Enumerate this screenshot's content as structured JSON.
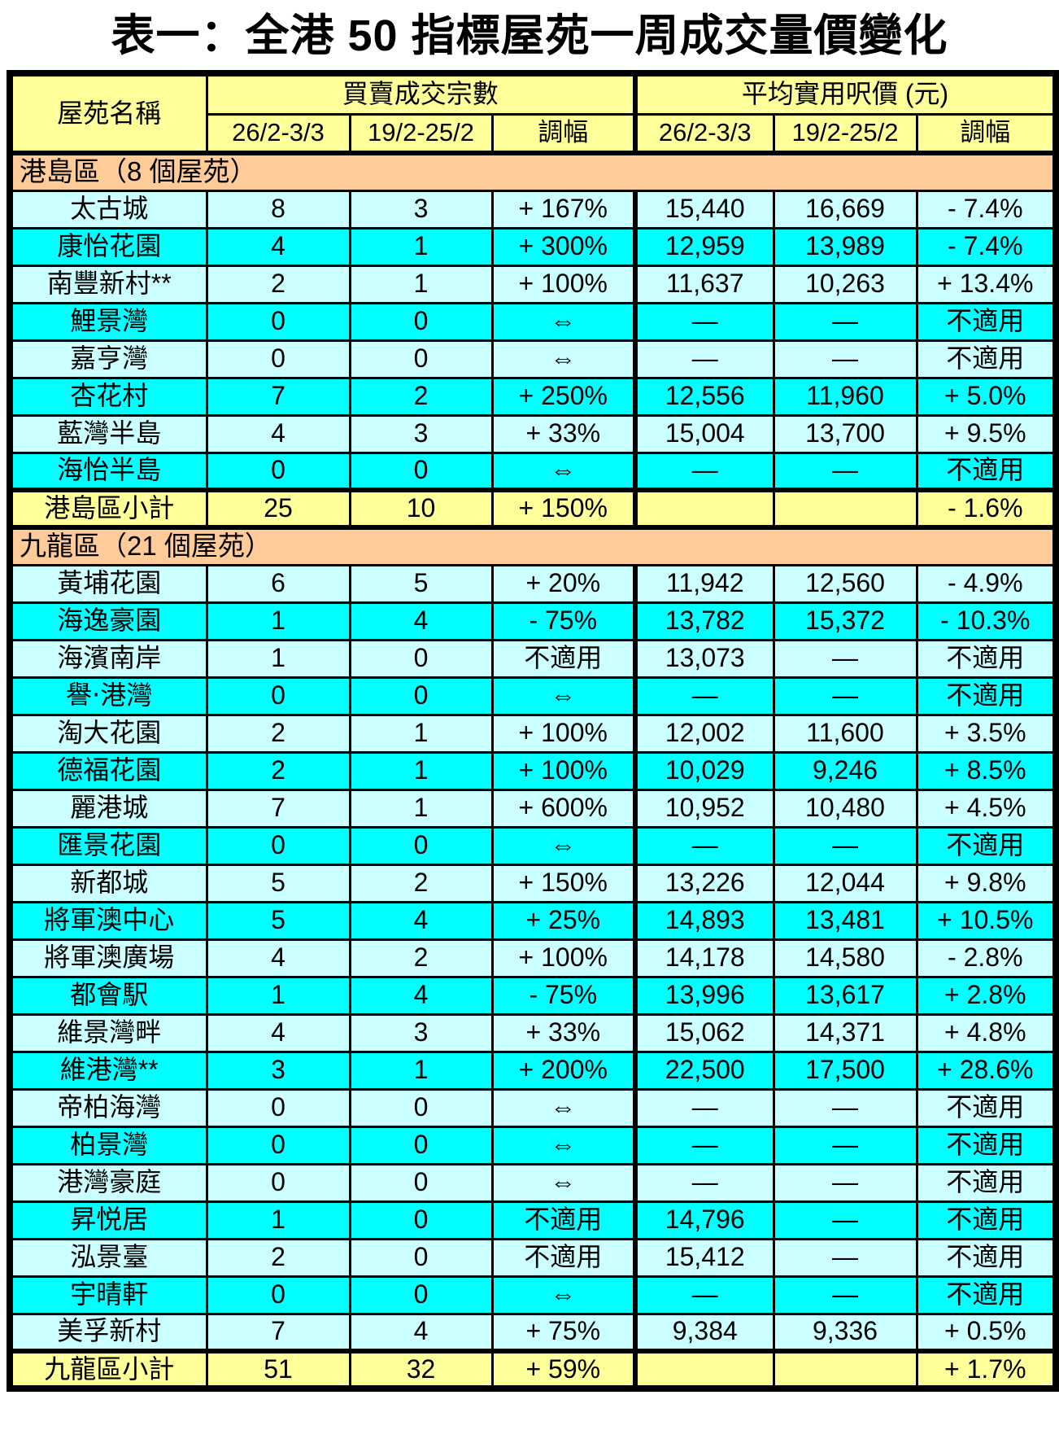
{
  "title": "表一：全港 50 指標屋苑一周成交量價變化",
  "colors": {
    "header_bg": "#FFFF99",
    "section_bg": "#FFCC99",
    "row_light_bg": "#CCFFFF",
    "row_bright_bg": "#00FFFF",
    "subtotal_bg": "#FFFF99",
    "border": "#000000",
    "text": "#000000"
  },
  "table": {
    "headers": {
      "estate": "屋苑名稱",
      "transactions_group": "買賣成交宗數",
      "price_group": "平均實用呎價 (元)",
      "period_current": "26/2-3/3",
      "period_previous": "19/2-25/2",
      "change": "調幅"
    },
    "sections": [
      {
        "header": "港島區（8 個屋苑）",
        "rows": [
          {
            "name": "太古城",
            "txn_current": "8",
            "txn_previous": "3",
            "txn_change": "+ 167%",
            "price_current": "15,440",
            "price_previous": "16,669",
            "price_change": "- 7.4%"
          },
          {
            "name": "康怡花園",
            "txn_current": "4",
            "txn_previous": "1",
            "txn_change": "+ 300%",
            "price_current": "12,959",
            "price_previous": "13,989",
            "price_change": "- 7.4%"
          },
          {
            "name": "南豐新村**",
            "txn_current": "2",
            "txn_previous": "1",
            "txn_change": "+ 100%",
            "price_current": "11,637",
            "price_previous": "10,263",
            "price_change": "+ 13.4%"
          },
          {
            "name": "鯉景灣",
            "txn_current": "0",
            "txn_previous": "0",
            "txn_change": "⇔",
            "price_current": "—",
            "price_previous": "—",
            "price_change": "不適用"
          },
          {
            "name": "嘉亨灣",
            "txn_current": "0",
            "txn_previous": "0",
            "txn_change": "⇔",
            "price_current": "—",
            "price_previous": "—",
            "price_change": "不適用"
          },
          {
            "name": "杏花村",
            "txn_current": "7",
            "txn_previous": "2",
            "txn_change": "+ 250%",
            "price_current": "12,556",
            "price_previous": "11,960",
            "price_change": "+ 5.0%"
          },
          {
            "name": "藍灣半島",
            "txn_current": "4",
            "txn_previous": "3",
            "txn_change": "+ 33%",
            "price_current": "15,004",
            "price_previous": "13,700",
            "price_change": "+ 9.5%"
          },
          {
            "name": "海怡半島",
            "txn_current": "0",
            "txn_previous": "0",
            "txn_change": "⇔",
            "price_current": "—",
            "price_previous": "—",
            "price_change": "不適用"
          }
        ],
        "subtotal": {
          "name": "港島區小計",
          "txn_current": "25",
          "txn_previous": "10",
          "txn_change": "+ 150%",
          "price_current": "",
          "price_previous": "",
          "price_change": "- 1.6%"
        }
      },
      {
        "header": "九龍區（21 個屋苑）",
        "rows": [
          {
            "name": "黃埔花園",
            "txn_current": "6",
            "txn_previous": "5",
            "txn_change": "+ 20%",
            "price_current": "11,942",
            "price_previous": "12,560",
            "price_change": "- 4.9%"
          },
          {
            "name": "海逸豪園",
            "txn_current": "1",
            "txn_previous": "4",
            "txn_change": "- 75%",
            "price_current": "13,782",
            "price_previous": "15,372",
            "price_change": "- 10.3%"
          },
          {
            "name": "海濱南岸",
            "txn_current": "1",
            "txn_previous": "0",
            "txn_change": "不適用",
            "price_current": "13,073",
            "price_previous": "—",
            "price_change": "不適用"
          },
          {
            "name": "譽‧港灣",
            "txn_current": "0",
            "txn_previous": "0",
            "txn_change": "⇔",
            "price_current": "—",
            "price_previous": "—",
            "price_change": "不適用"
          },
          {
            "name": "淘大花園",
            "txn_current": "2",
            "txn_previous": "1",
            "txn_change": "+ 100%",
            "price_current": "12,002",
            "price_previous": "11,600",
            "price_change": "+ 3.5%"
          },
          {
            "name": "德福花園",
            "txn_current": "2",
            "txn_previous": "1",
            "txn_change": "+ 100%",
            "price_current": "10,029",
            "price_previous": "9,246",
            "price_change": "+ 8.5%"
          },
          {
            "name": "麗港城",
            "txn_current": "7",
            "txn_previous": "1",
            "txn_change": "+ 600%",
            "price_current": "10,952",
            "price_previous": "10,480",
            "price_change": "+ 4.5%"
          },
          {
            "name": "匯景花園",
            "txn_current": "0",
            "txn_previous": "0",
            "txn_change": "⇔",
            "price_current": "—",
            "price_previous": "—",
            "price_change": "不適用"
          },
          {
            "name": "新都城",
            "txn_current": "5",
            "txn_previous": "2",
            "txn_change": "+ 150%",
            "price_current": "13,226",
            "price_previous": "12,044",
            "price_change": "+ 9.8%"
          },
          {
            "name": "將軍澳中心",
            "txn_current": "5",
            "txn_previous": "4",
            "txn_change": "+ 25%",
            "price_current": "14,893",
            "price_previous": "13,481",
            "price_change": "+ 10.5%"
          },
          {
            "name": "將軍澳廣場",
            "txn_current": "4",
            "txn_previous": "2",
            "txn_change": "+ 100%",
            "price_current": "14,178",
            "price_previous": "14,580",
            "price_change": "- 2.8%"
          },
          {
            "name": "都會駅",
            "txn_current": "1",
            "txn_previous": "4",
            "txn_change": "- 75%",
            "price_current": "13,996",
            "price_previous": "13,617",
            "price_change": "+ 2.8%"
          },
          {
            "name": "維景灣畔",
            "txn_current": "4",
            "txn_previous": "3",
            "txn_change": "+ 33%",
            "price_current": "15,062",
            "price_previous": "14,371",
            "price_change": "+ 4.8%"
          },
          {
            "name": "維港灣**",
            "txn_current": "3",
            "txn_previous": "1",
            "txn_change": "+ 200%",
            "price_current": "22,500",
            "price_previous": "17,500",
            "price_change": "+ 28.6%"
          },
          {
            "name": "帝柏海灣",
            "txn_current": "0",
            "txn_previous": "0",
            "txn_change": "⇔",
            "price_current": "—",
            "price_previous": "—",
            "price_change": "不適用"
          },
          {
            "name": "柏景灣",
            "txn_current": "0",
            "txn_previous": "0",
            "txn_change": "⇔",
            "price_current": "—",
            "price_previous": "—",
            "price_change": "不適用"
          },
          {
            "name": "港灣豪庭",
            "txn_current": "0",
            "txn_previous": "0",
            "txn_change": "⇔",
            "price_current": "—",
            "price_previous": "—",
            "price_change": "不適用"
          },
          {
            "name": "昇悦居",
            "txn_current": "1",
            "txn_previous": "0",
            "txn_change": "不適用",
            "price_current": "14,796",
            "price_previous": "—",
            "price_change": "不適用"
          },
          {
            "name": "泓景臺",
            "txn_current": "2",
            "txn_previous": "0",
            "txn_change": "不適用",
            "price_current": "15,412",
            "price_previous": "—",
            "price_change": "不適用"
          },
          {
            "name": "宇晴軒",
            "txn_current": "0",
            "txn_previous": "0",
            "txn_change": "⇔",
            "price_current": "—",
            "price_previous": "—",
            "price_change": "不適用"
          },
          {
            "name": "美孚新村",
            "txn_current": "7",
            "txn_previous": "4",
            "txn_change": "+ 75%",
            "price_current": "9,384",
            "price_previous": "9,336",
            "price_change": "+ 0.5%"
          }
        ],
        "subtotal": {
          "name": "九龍區小計",
          "txn_current": "51",
          "txn_previous": "32",
          "txn_change": "+ 59%",
          "price_current": "",
          "price_previous": "",
          "price_change": "+ 1.7%"
        }
      }
    ]
  }
}
